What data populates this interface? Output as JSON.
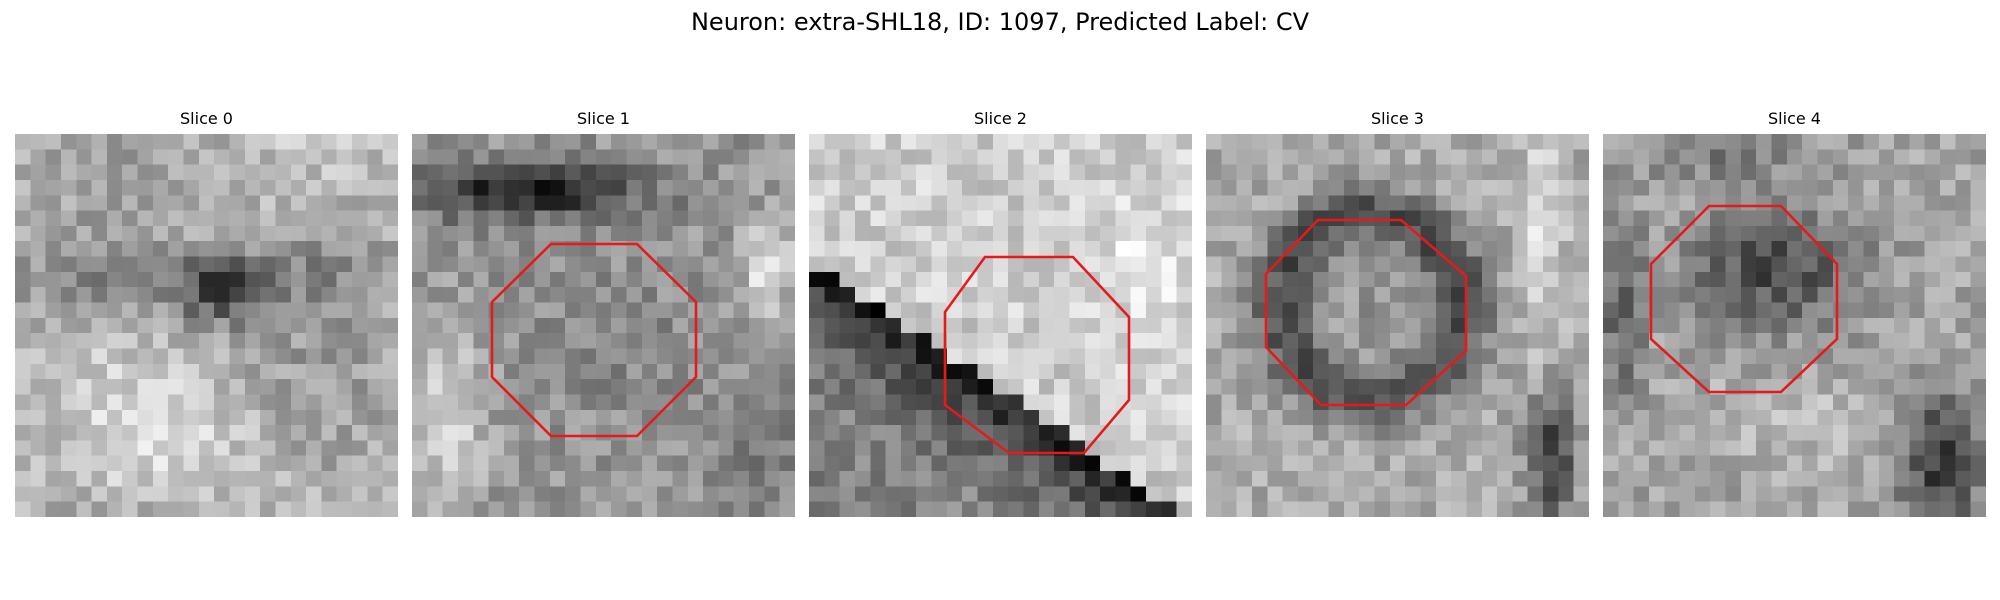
{
  "figure": {
    "title": "Neuron: extra-SHL18, ID: 1097, Predicted Label: CV"
  },
  "panels": [
    {
      "title": "Slice 0",
      "has_octagon": false,
      "texture_description": "grayscale pixelated patch, dark blob near center"
    },
    {
      "title": "Slice 1",
      "has_octagon": true,
      "texture_description": "grayscale pixelated patch, dark band along top"
    },
    {
      "title": "Slice 2",
      "has_octagon": true,
      "texture_description": "grayscale pixelated patch, dark diagonal band"
    },
    {
      "title": "Slice 3",
      "has_octagon": true,
      "texture_description": "grayscale pixelated patch, dark ring around center"
    },
    {
      "title": "Slice 4",
      "has_octagon": true,
      "texture_description": "grayscale pixelated patch, dark spot upper right"
    }
  ],
  "colors": {
    "octagon_stroke": "#e41a1c",
    "background": "#ffffff",
    "text": "#000000"
  }
}
